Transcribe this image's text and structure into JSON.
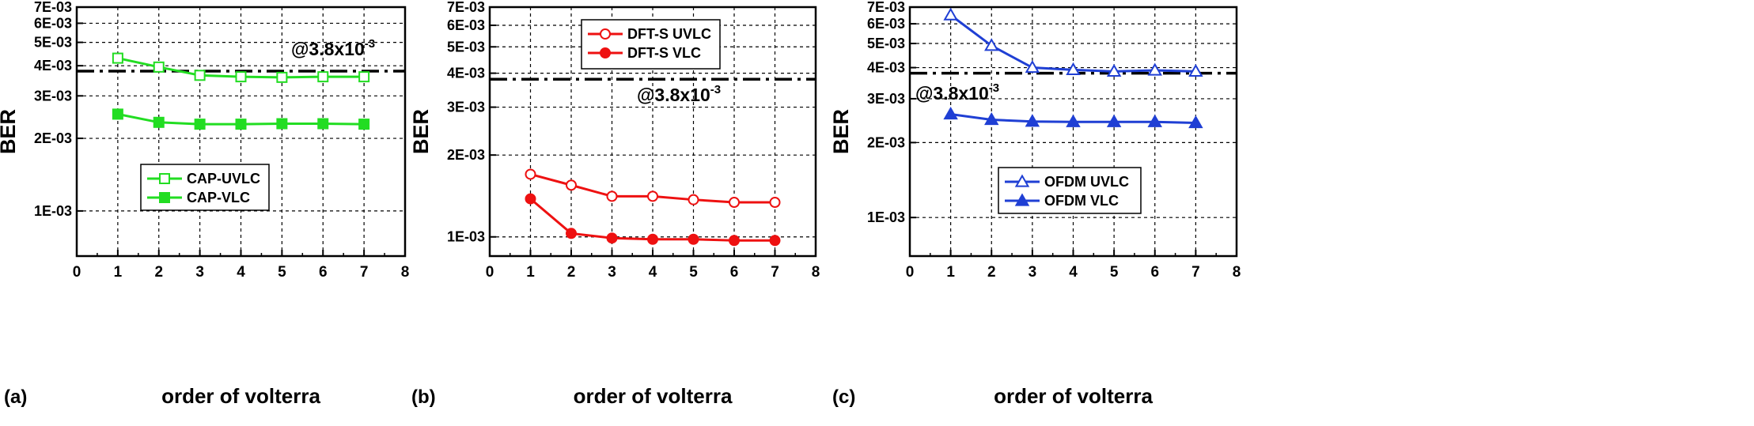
{
  "chart_data": [
    {
      "type": "line",
      "panel_label": "(a)",
      "xlabel": "order of volterra",
      "ylabel": "BER",
      "yscale": "log",
      "xlim": [
        0,
        8
      ],
      "ylim": [
        0.00065,
        0.007
      ],
      "x_ticks": [
        "0",
        "1",
        "2",
        "3",
        "4",
        "5",
        "6",
        "7",
        "8"
      ],
      "y_ticks": [
        {
          "value": 0.007,
          "label": "7E-03"
        },
        {
          "value": 0.006,
          "label": "6E-03"
        },
        {
          "value": 0.005,
          "label": "5E-03"
        },
        {
          "value": 0.004,
          "label": "4E-03"
        },
        {
          "value": 0.003,
          "label": "3E-03"
        },
        {
          "value": 0.002,
          "label": "2E-03"
        },
        {
          "value": 0.001,
          "label": "1E-03"
        }
      ],
      "grid": true,
      "color": "#22dd22",
      "threshold": {
        "value": 0.0038,
        "label_main": "@3.8x10",
        "label_sup": "-3"
      },
      "legend": {
        "placement": "center-left"
      },
      "x": [
        1,
        2,
        3,
        4,
        5,
        6,
        7
      ],
      "series": [
        {
          "name": "CAP-UVLC",
          "marker": "square-open",
          "values": [
            0.0043,
            0.00395,
            0.00365,
            0.0036,
            0.00358,
            0.0036,
            0.0036
          ]
        },
        {
          "name": "CAP-VLC",
          "marker": "square-filled",
          "values": [
            0.00252,
            0.00233,
            0.00229,
            0.00229,
            0.0023,
            0.0023,
            0.00229
          ]
        }
      ]
    },
    {
      "type": "line",
      "panel_label": "(b)",
      "xlabel": "order of volterra",
      "ylabel": "BER",
      "yscale": "log",
      "xlim": [
        0,
        8
      ],
      "ylim": [
        0.00085,
        0.007
      ],
      "x_ticks": [
        "0",
        "1",
        "2",
        "3",
        "4",
        "5",
        "6",
        "7",
        "8"
      ],
      "y_ticks": [
        {
          "value": 0.007,
          "label": "7E-03"
        },
        {
          "value": 0.006,
          "label": "6E-03"
        },
        {
          "value": 0.005,
          "label": "5E-03"
        },
        {
          "value": 0.004,
          "label": "4E-03"
        },
        {
          "value": 0.003,
          "label": "3E-03"
        },
        {
          "value": 0.002,
          "label": "2E-03"
        },
        {
          "value": 0.001,
          "label": "1E-03"
        }
      ],
      "grid": true,
      "color": "#ee1111",
      "threshold": {
        "value": 0.0038,
        "label_main": "@3.8x10",
        "label_sup": "-3"
      },
      "legend": {
        "placement": "top-left"
      },
      "x": [
        1,
        2,
        3,
        4,
        5,
        6,
        7
      ],
      "series": [
        {
          "name": "DFT-S UVLC",
          "marker": "circle-open",
          "values": [
            0.0017,
            0.00155,
            0.00141,
            0.00141,
            0.00137,
            0.00134,
            0.00134
          ]
        },
        {
          "name": "DFT-S VLC",
          "marker": "circle-filled",
          "values": [
            0.00138,
            0.00103,
            0.00099,
            0.00098,
            0.00098,
            0.00097,
            0.00097
          ]
        }
      ]
    },
    {
      "type": "line",
      "panel_label": "(c)",
      "xlabel": "order of volterra",
      "ylabel": "BER",
      "yscale": "log",
      "xlim": [
        0,
        8
      ],
      "ylim": [
        0.0007,
        0.007
      ],
      "x_ticks": [
        "0",
        "1",
        "2",
        "3",
        "4",
        "5",
        "6",
        "7",
        "8"
      ],
      "y_ticks": [
        {
          "value": 0.007,
          "label": "7E-03"
        },
        {
          "value": 0.006,
          "label": "6E-03"
        },
        {
          "value": 0.005,
          "label": "5E-03"
        },
        {
          "value": 0.004,
          "label": "4E-03"
        },
        {
          "value": 0.003,
          "label": "3E-03"
        },
        {
          "value": 0.002,
          "label": "2E-03"
        },
        {
          "value": 0.001,
          "label": "1E-03"
        }
      ],
      "grid": true,
      "color": "#1f3fd4",
      "threshold": {
        "value": 0.0038,
        "label_main": "@3.8x10",
        "label_sup": "-3"
      },
      "legend": {
        "placement": "bottom-right"
      },
      "x": [
        1,
        2,
        3,
        4,
        5,
        6,
        7
      ],
      "series": [
        {
          "name": "OFDM UVLC",
          "marker": "triangle-open",
          "values": [
            0.0065,
            0.0049,
            0.004,
            0.00392,
            0.00386,
            0.0039,
            0.00386
          ]
        },
        {
          "name": "OFDM VLC",
          "marker": "triangle-filled",
          "values": [
            0.0026,
            0.00247,
            0.00243,
            0.00242,
            0.00242,
            0.00242,
            0.0024
          ]
        }
      ]
    }
  ]
}
